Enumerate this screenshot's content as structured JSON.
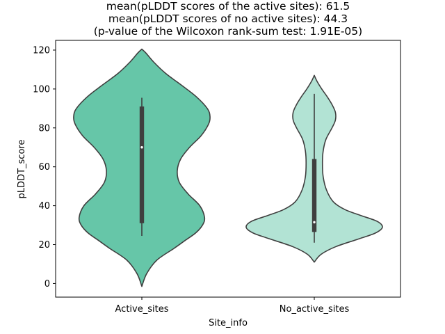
{
  "chart_data": {
    "type": "violin",
    "title_lines": [
      "mean(pLDDT scores of the active sites): 61.5",
      "mean(pLDDT scores of no active sites): 44.3",
      "(p-value of the Wilcoxon rank-sum test: 1.91E-05)"
    ],
    "xlabel": "Site_info",
    "ylabel": "pLDDT_score",
    "ylim": [
      -7,
      125
    ],
    "yticks": [
      0,
      20,
      40,
      60,
      80,
      100,
      120
    ],
    "grid": false,
    "categories": [
      "Active_sites",
      "No_active_sites"
    ],
    "violins": [
      {
        "category": "Active_sites",
        "color": "#66c6a8",
        "y_range": [
          -1.5,
          120.5
        ],
        "box": {
          "q1": 31,
          "median": 70,
          "q3": 91,
          "whisker_low": 24.5,
          "whisker_high": 95.5
        },
        "density": [
          [
            -1.5,
            0.0
          ],
          [
            5,
            0.07
          ],
          [
            12,
            0.22
          ],
          [
            18,
            0.47
          ],
          [
            22,
            0.63
          ],
          [
            26,
            0.79
          ],
          [
            30,
            0.89
          ],
          [
            34,
            0.92
          ],
          [
            40,
            0.85
          ],
          [
            46,
            0.68
          ],
          [
            52,
            0.55
          ],
          [
            58,
            0.52
          ],
          [
            64,
            0.57
          ],
          [
            70,
            0.7
          ],
          [
            76,
            0.87
          ],
          [
            82,
            0.98
          ],
          [
            86,
            1.0
          ],
          [
            90,
            0.96
          ],
          [
            96,
            0.8
          ],
          [
            102,
            0.58
          ],
          [
            108,
            0.35
          ],
          [
            114,
            0.17
          ],
          [
            118.5,
            0.06
          ],
          [
            120.5,
            0.0
          ]
        ]
      },
      {
        "category": "No_active_sites",
        "color": "#b2e3d4",
        "y_range": [
          11,
          107
        ],
        "box": {
          "q1": 26.5,
          "median": 31.5,
          "q3": 64,
          "whisker_low": 21,
          "whisker_high": 97.5
        },
        "density": [
          [
            11,
            0.0
          ],
          [
            15,
            0.1
          ],
          [
            19,
            0.32
          ],
          [
            23,
            0.66
          ],
          [
            26,
            0.9
          ],
          [
            29,
            1.0
          ],
          [
            32,
            0.92
          ],
          [
            35,
            0.68
          ],
          [
            38,
            0.45
          ],
          [
            42,
            0.28
          ],
          [
            48,
            0.18
          ],
          [
            55,
            0.13
          ],
          [
            62,
            0.12
          ],
          [
            68,
            0.13
          ],
          [
            74,
            0.17
          ],
          [
            80,
            0.26
          ],
          [
            84,
            0.31
          ],
          [
            88,
            0.31
          ],
          [
            92,
            0.26
          ],
          [
            96,
            0.19
          ],
          [
            100,
            0.11
          ],
          [
            104,
            0.04
          ],
          [
            107,
            0.0
          ]
        ]
      }
    ]
  }
}
